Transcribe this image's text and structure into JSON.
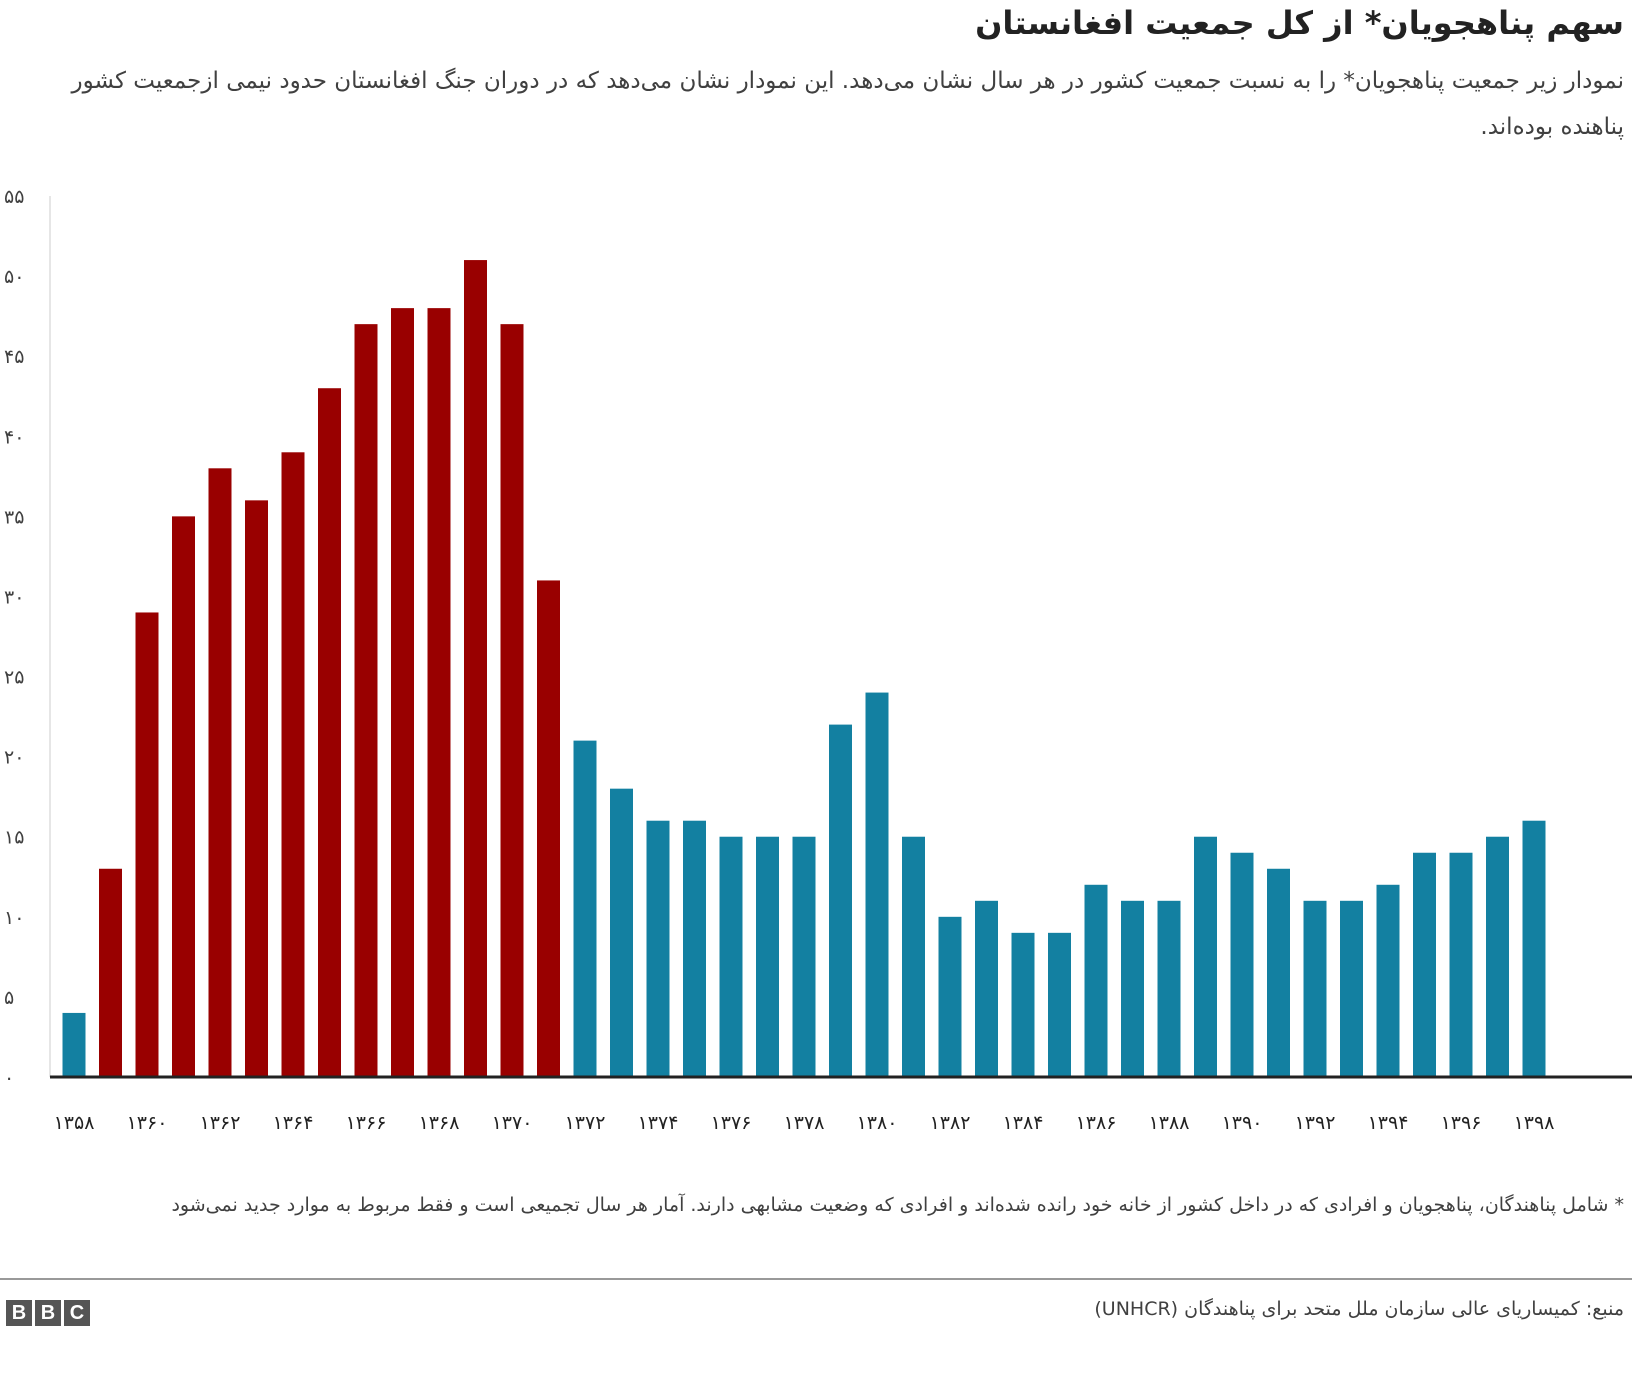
{
  "title": "سهم پناهجویان* از کل جمعیت افغانستان",
  "subtitle": "نمودار زیر جمعیت پناهجویان* را به نسبت جمعیت کشور در هر سال نشان می‌دهد. این نمودار نشان می‌دهد که در دوران جنگ افغانستان حدود نیمی ازجمعیت کشور پناهنده بوده‌اند.",
  "footnote": "* شامل پناهندگان، پناهجویان و افرادی که در داخل کشور از خانه خود رانده شده‌اند و افرادی که وضعیت مشابهی دارند. آمار هر سال تجمیعی است و فقط مربوط به موارد جدید نمی‌شود",
  "source": "منبع: کمیساریای عالی سازمان ملل متحد برای پناهندگان (UNHCR)",
  "logo": "BBC",
  "colors": {
    "red": "#990000",
    "blue": "#1380a1"
  },
  "chart_data": {
    "type": "bar",
    "title": "سهم پناهجویان* از کل جمعیت افغانستان",
    "xlabel": "",
    "ylabel": "",
    "ylim": [
      0,
      55
    ],
    "yticks": [
      "۰",
      "۵",
      "۱۰",
      "۱۵",
      "۲۰",
      "۲۵",
      "۳۰",
      "۳۵",
      "۴۰",
      "۴۵",
      "۵۰",
      "۵۵"
    ],
    "categories": [
      "۱۳۵۸",
      "۱۳۵۹",
      "۱۳۶۰",
      "۱۳۶۱",
      "۱۳۶۲",
      "۱۳۶۳",
      "۱۳۶۴",
      "۱۳۶۵",
      "۱۳۶۶",
      "۱۳۶۷",
      "۱۳۶۸",
      "۱۳۶۹",
      "۱۳۷۰",
      "۱۳۷۱",
      "۱۳۷۲",
      "۱۳۷۳",
      "۱۳۷۴",
      "۱۳۷۵",
      "۱۳۷۶",
      "۱۳۷۷",
      "۱۳۷۸",
      "۱۳۷۹",
      "۱۳۸۰",
      "۱۳۸۱",
      "۱۳۸۲",
      "۱۳۸۳",
      "۱۳۸۴",
      "۱۳۸۵",
      "۱۳۸۶",
      "۱۳۸۷",
      "۱۳۸۸",
      "۱۳۸۹",
      "۱۳۹۰",
      "۱۳۹۱",
      "۱۳۹۲",
      "۱۳۹۳",
      "۱۳۹۴",
      "۱۳۹۵",
      "۱۳۹۶",
      "۱۳۹۷",
      "۱۳۹۸"
    ],
    "values": [
      4,
      13,
      29,
      35,
      38,
      36,
      39,
      43,
      47,
      48,
      48,
      51,
      47,
      31,
      21,
      18,
      16,
      16,
      15,
      15,
      15,
      22,
      24,
      15,
      10,
      11,
      9,
      9,
      12,
      11,
      11,
      15,
      14,
      13,
      11,
      11,
      12,
      14,
      14,
      15,
      16
    ],
    "war_period": [
      false,
      true,
      true,
      true,
      true,
      true,
      true,
      true,
      true,
      true,
      true,
      true,
      true,
      true,
      false,
      false,
      false,
      false,
      false,
      false,
      false,
      false,
      false,
      false,
      false,
      false,
      false,
      false,
      false,
      false,
      false,
      false,
      false,
      false,
      false,
      false,
      false,
      false,
      false,
      false,
      false
    ]
  }
}
